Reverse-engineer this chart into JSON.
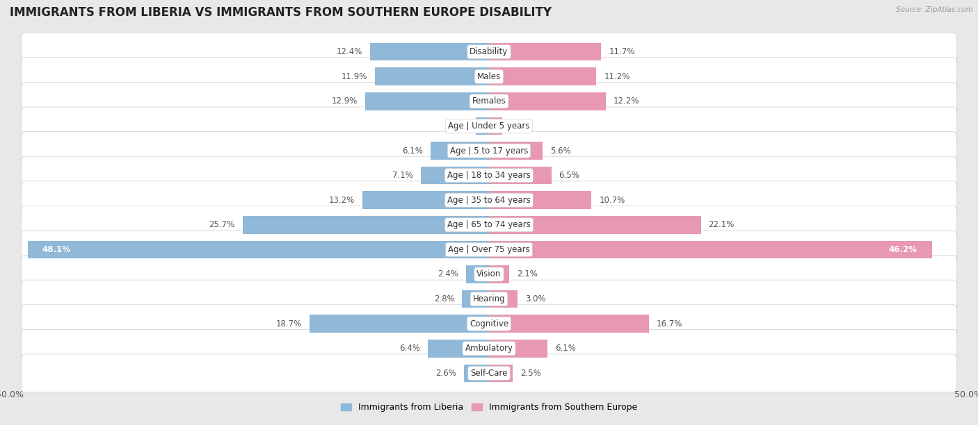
{
  "title": "IMMIGRANTS FROM LIBERIA VS IMMIGRANTS FROM SOUTHERN EUROPE DISABILITY",
  "source": "Source: ZipAtlas.com",
  "categories": [
    "Disability",
    "Males",
    "Females",
    "Age | Under 5 years",
    "Age | 5 to 17 years",
    "Age | 18 to 34 years",
    "Age | 35 to 64 years",
    "Age | 65 to 74 years",
    "Age | Over 75 years",
    "Vision",
    "Hearing",
    "Cognitive",
    "Ambulatory",
    "Self-Care"
  ],
  "liberia_values": [
    12.4,
    11.9,
    12.9,
    1.4,
    6.1,
    7.1,
    13.2,
    25.7,
    48.1,
    2.4,
    2.8,
    18.7,
    6.4,
    2.6
  ],
  "southern_europe_values": [
    11.7,
    11.2,
    12.2,
    1.4,
    5.6,
    6.5,
    10.7,
    22.1,
    46.2,
    2.1,
    3.0,
    16.7,
    6.1,
    2.5
  ],
  "liberia_color": "#90b8d8",
  "southern_europe_color": "#e898b0",
  "liberia_label": "Immigrants from Liberia",
  "southern_europe_label": "Immigrants from Southern Europe",
  "axis_limit": 50.0,
  "background_color": "#e8e8e8",
  "row_background_color": "#ffffff",
  "row_border_color": "#cccccc",
  "title_fontsize": 12,
  "label_fontsize": 8.5,
  "bar_height": 0.72,
  "value_label_color": "#555555",
  "value_label_white": "#ffffff"
}
